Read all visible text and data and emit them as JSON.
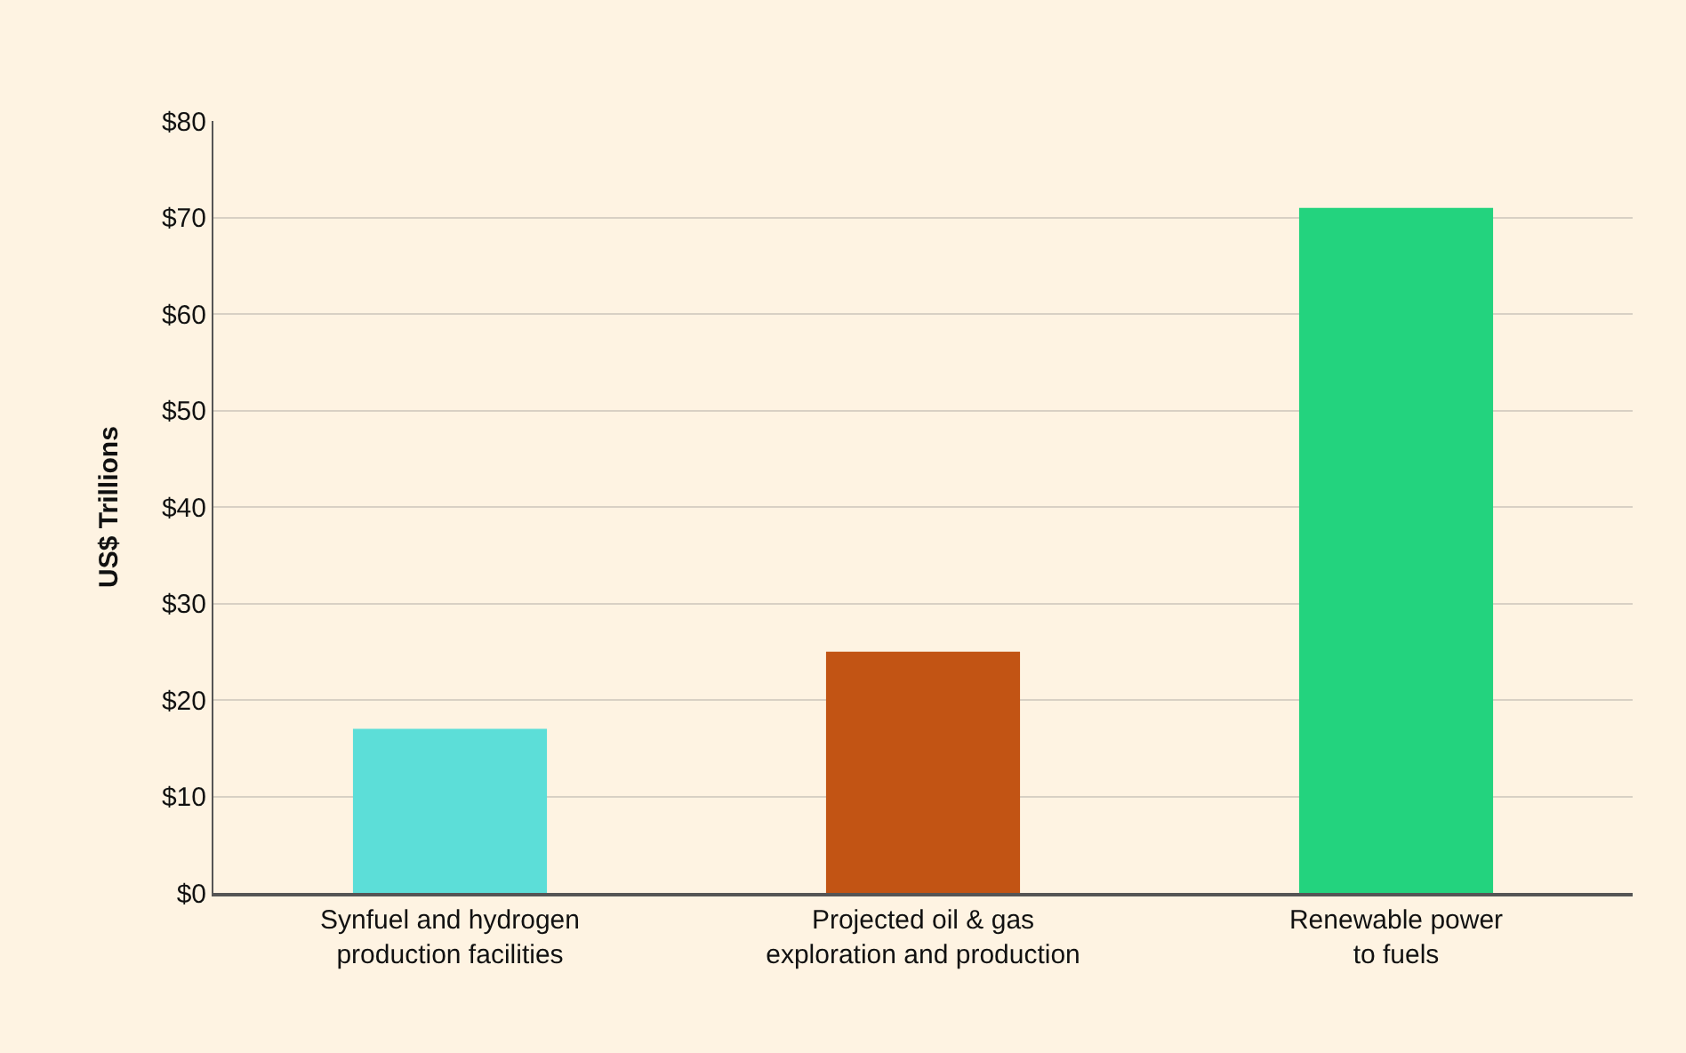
{
  "chart_data": {
    "type": "bar",
    "ylabel": "US$ Trillions",
    "categories": [
      "Synfuel and hydrogen\nproduction facilities",
      "Projected oil & gas\nexploration and production",
      "Renewable power\nto fuels"
    ],
    "values": [
      17,
      25,
      71
    ],
    "colors": [
      "#5cded8",
      "#c25414",
      "#23d37e"
    ],
    "ylim": [
      0,
      80
    ],
    "yticks": [
      {
        "value": 0,
        "label": "$0"
      },
      {
        "value": 10,
        "label": "$10"
      },
      {
        "value": 20,
        "label": "$20"
      },
      {
        "value": 30,
        "label": "$30"
      },
      {
        "value": 40,
        "label": "$40"
      },
      {
        "value": 50,
        "label": "$50"
      },
      {
        "value": 60,
        "label": "$60"
      },
      {
        "value": 70,
        "label": "$70"
      },
      {
        "value": 80,
        "label": "$80"
      }
    ],
    "grid": "y"
  }
}
